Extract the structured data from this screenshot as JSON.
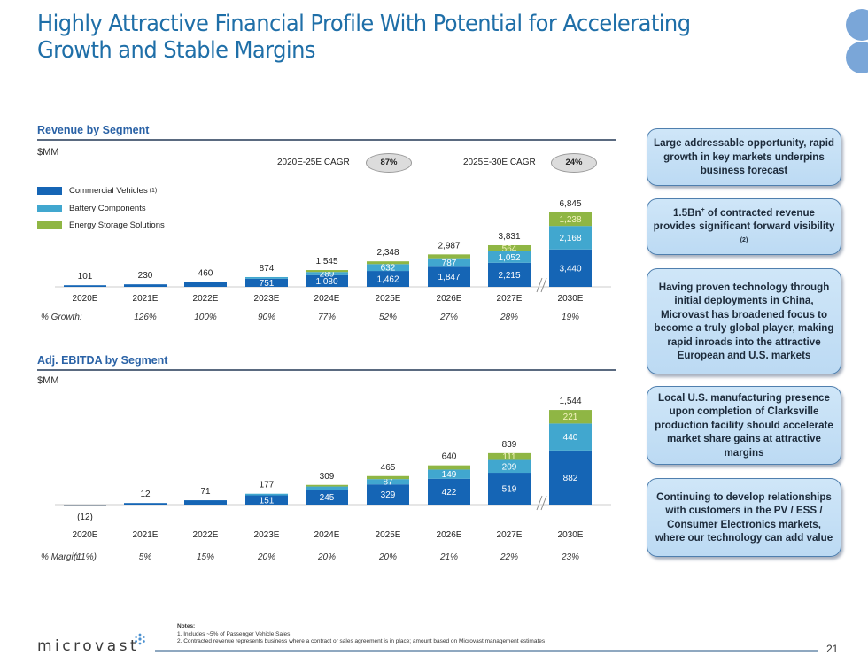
{
  "header": {
    "title": "Highly Attractive Financial Profile With Potential for Accelerating Growth and Stable Margins"
  },
  "colors": {
    "commercial_vehicles": "#1565b5",
    "battery_components": "#41a7cf",
    "energy_storage": "#8fb644",
    "title_blue": "#1f6fa8",
    "callout_fill": "#c4dff5"
  },
  "revenue_section": {
    "heading": "Revenue by Segment",
    "unit": "$MM",
    "cagr1_label": "2020E-25E  CAGR",
    "cagr1_value": "87%",
    "cagr2_label": "2025E-30E  CAGR",
    "cagr2_value": "24%",
    "growth_label": "% Growth:",
    "legend": [
      {
        "label": "Commercial Vehicles",
        "note": "(1)"
      },
      {
        "label": "Battery Components",
        "note": ""
      },
      {
        "label": "Energy Storage Solutions",
        "note": ""
      }
    ]
  },
  "ebitda_section": {
    "heading": "Adj. EBITDA by Segment",
    "unit": "$MM",
    "margin_label": "% Margin:"
  },
  "chart_data": [
    {
      "type": "bar",
      "stacked": true,
      "title": "Revenue by Segment",
      "ylabel": "$MM",
      "categories": [
        "2020E",
        "2021E",
        "2022E",
        "2023E",
        "2024E",
        "2025E",
        "2026E",
        "2027E",
        "2030E"
      ],
      "series": [
        {
          "name": "Commercial Vehicles",
          "values": [
            101,
            230,
            460,
            751,
            1080,
            1462,
            1847,
            2215,
            3440
          ],
          "labels": [
            "",
            "",
            "",
            "751",
            "1,080",
            "1,462",
            "1,847",
            "2,215",
            "3,440"
          ]
        },
        {
          "name": "Battery Components",
          "values": [
            0,
            0,
            0,
            123,
            289,
            632,
            787,
            1052,
            2168
          ],
          "labels": [
            "",
            "",
            "",
            "",
            "289",
            "632",
            "787",
            "1,052",
            "2,168"
          ]
        },
        {
          "name": "Energy Storage Solutions",
          "values": [
            0,
            0,
            0,
            0,
            176,
            254,
            353,
            564,
            1238
          ],
          "labels": [
            "",
            "",
            "",
            "",
            "",
            "",
            "",
            "564",
            "1,238"
          ]
        }
      ],
      "totals": [
        "101",
        "230",
        "460",
        "874",
        "1,545",
        "2,348",
        "2,987",
        "3,831",
        "6,845"
      ],
      "growth": [
        "",
        "126%",
        "100%",
        "90%",
        "77%",
        "52%",
        "27%",
        "28%",
        "19%"
      ],
      "axis_break_before": "2030E",
      "ylim": [
        0,
        6845
      ]
    },
    {
      "type": "bar",
      "stacked": true,
      "title": "Adj. EBITDA by Segment",
      "ylabel": "$MM",
      "categories": [
        "2020E",
        "2021E",
        "2022E",
        "2023E",
        "2024E",
        "2025E",
        "2026E",
        "2027E",
        "2030E"
      ],
      "series": [
        {
          "name": "Commercial Vehicles",
          "values": [
            -12,
            12,
            71,
            151,
            245,
            329,
            422,
            519,
            882
          ],
          "labels": [
            "",
            "",
            "",
            "151",
            "245",
            "329",
            "422",
            "519",
            "882"
          ]
        },
        {
          "name": "Battery Components",
          "values": [
            0,
            0,
            0,
            26,
            50,
            87,
            149,
            209,
            440
          ],
          "labels": [
            "",
            "",
            "",
            "",
            "",
            "87",
            "149",
            "209",
            "440"
          ]
        },
        {
          "name": "Energy Storage Solutions",
          "values": [
            0,
            0,
            0,
            0,
            14,
            49,
            69,
            111,
            221
          ],
          "labels": [
            "",
            "",
            "",
            "",
            "",
            "",
            "",
            "111",
            "221"
          ]
        }
      ],
      "totals": [
        "(12)",
        "12",
        "71",
        "177",
        "309",
        "465",
        "640",
        "839",
        "1,544"
      ],
      "margin": [
        "(11%)",
        "5%",
        "15%",
        "20%",
        "20%",
        "20%",
        "21%",
        "22%",
        "23%"
      ],
      "axis_break_before": "2030E",
      "ylim": [
        -12,
        1544
      ]
    }
  ],
  "callouts": [
    {
      "text": "Large addressable opportunity, rapid growth in key markets underpins business forecast"
    },
    {
      "pre": "1.5Bn",
      "sup": "+",
      "text": " of contracted revenue provides significant forward visibility ",
      "note": "(2)"
    },
    {
      "text": "Having proven technology through initial deployments in China, Microvast has broadened focus to become a truly global player, making rapid inroads into the attractive European and U.S. markets"
    },
    {
      "text": "Local U.S. manufacturing presence upon completion of Clarksville production facility should accelerate market share gains at attractive margins"
    },
    {
      "text": "Continuing to develop relationships with customers in the PV / ESS / Consumer Electronics markets, where our technology can add value"
    }
  ],
  "footer": {
    "notes_heading": "Notes:",
    "notes": [
      "1.  Includes ~5% of Passenger Vehicle Sales",
      "2.  Contracted revenue represents business where a contract or sales agreement is in place; amount based on Microvast management estimates"
    ],
    "logo_text": "microvast",
    "page_number": "21"
  }
}
